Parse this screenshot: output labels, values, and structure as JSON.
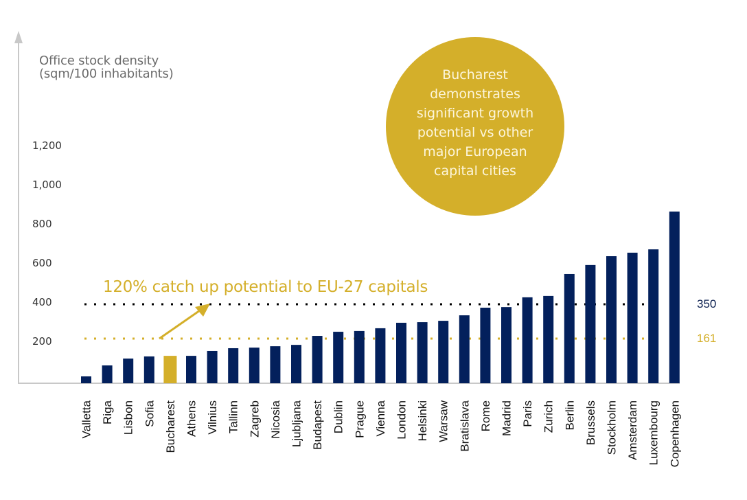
{
  "chart_data": {
    "type": "bar",
    "title": "",
    "ylabel": [
      "Office stock density",
      "(sqm/100 inhabitants)"
    ],
    "xlabel": "",
    "ylim": [
      0,
      1200
    ],
    "yticks": [
      200,
      400,
      600,
      800,
      1000,
      1200
    ],
    "ytick_labels": [
      "200",
      "400",
      "600",
      "800",
      "1,000",
      "1,200"
    ],
    "grid": false,
    "categories": [
      "Valletta",
      "Riga",
      "Lisbon",
      "Sofia",
      "Bucharest",
      "Athens",
      "Vilnius",
      "Tallinn",
      "Zagreb",
      "Nicosia",
      "Ljubljana",
      "Budapest",
      "Dublin",
      "Prague",
      "Vienna",
      "London",
      "Helsinki",
      "Warsaw",
      "Bratislava",
      "Rome",
      "Madrid",
      "Paris",
      "Zurich",
      "Berlin",
      "Brussels",
      "Stockholm",
      "Amsterdam",
      "Luxembourg",
      "Copenhagen"
    ],
    "values": [
      35,
      91,
      126,
      137,
      140,
      140,
      165,
      179,
      182,
      189,
      196,
      242,
      263,
      267,
      281,
      309,
      312,
      319,
      347,
      386,
      389,
      439,
      446,
      558,
      604,
      649,
      667,
      684,
      877
    ],
    "highlight": "Bucharest",
    "colors": {
      "bar": "#03205c",
      "highlight": "#d4af2a"
    },
    "reference_lines": [
      {
        "value": 350,
        "label": "350",
        "color": "#000000",
        "label_color": "#0b1f4f"
      },
      {
        "value": 161,
        "label": "161",
        "color": "#d4af2a",
        "label_color": "#d4af2a"
      }
    ],
    "annotation": "120% catch up potential to EU-27 capitals",
    "callout": "Bucharest demonstrates significant growth potential vs other major European capital cities"
  }
}
